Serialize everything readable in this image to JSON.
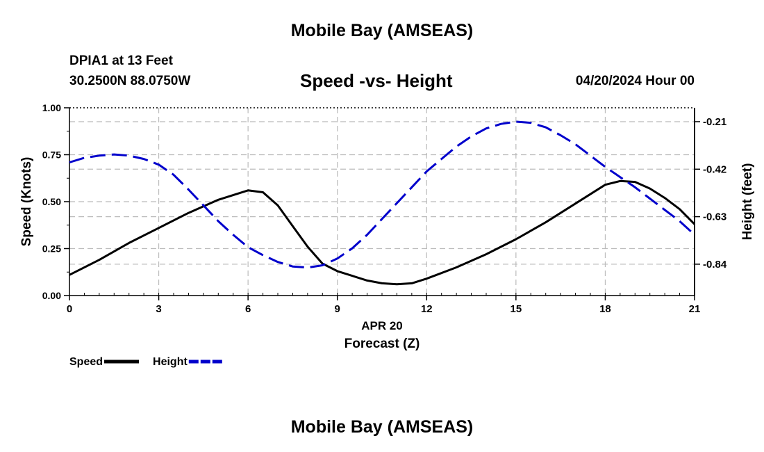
{
  "header": {
    "title": "Mobile Bay (AMSEAS)",
    "station": "DPIA1 at 13 Feet",
    "location": "30.2500N  88.0750W",
    "chart_title": "Speed -vs- Height",
    "run_date": "04/20/2024 Hour 00",
    "bottom_title": "Mobile Bay (AMSEAS)"
  },
  "chart_data": {
    "type": "line",
    "title": "Speed -vs- Height",
    "xlabel": "Forecast (Z)",
    "xlabel_date": "APR 20",
    "ylabel": "Speed (Knots)",
    "y2label": "Height (feet)",
    "xlim": [
      0,
      21
    ],
    "ylim": [
      0,
      1
    ],
    "y2lim": [
      -0.9786,
      -0.1486
    ],
    "x_ticks": [
      0,
      3,
      6,
      9,
      12,
      15,
      18,
      21
    ],
    "x_tick_labels": [
      "0",
      "3",
      "6",
      "9",
      "12",
      "15",
      "18",
      "21"
    ],
    "y_ticks": [
      0,
      0.25,
      0.5,
      0.75,
      1
    ],
    "y_tick_labels": [
      "0.00",
      "0.25",
      "0.50",
      "0.75",
      "1.00"
    ],
    "y2_ticks": [
      -0.84,
      -0.63,
      -0.42,
      -0.21
    ],
    "y2_tick_labels": [
      "-0.84",
      "-0.63",
      "-0.42",
      "-0.21"
    ],
    "grid": true,
    "legend_position": "bottom-left",
    "series": [
      {
        "name": "Speed",
        "axis": "left",
        "color": "#000000",
        "style": "solid",
        "x": [
          0,
          1,
          2,
          3,
          4,
          5,
          6,
          6.5,
          7,
          7.5,
          8,
          8.5,
          9,
          10,
          10.5,
          11,
          11.5,
          12,
          13,
          14,
          15,
          16,
          17,
          18,
          18.5,
          19,
          19.5,
          20,
          20.5,
          21
        ],
        "values": [
          0.11,
          0.19,
          0.28,
          0.36,
          0.44,
          0.51,
          0.56,
          0.55,
          0.48,
          0.37,
          0.26,
          0.17,
          0.13,
          0.08,
          0.065,
          0.06,
          0.065,
          0.09,
          0.15,
          0.22,
          0.3,
          0.39,
          0.49,
          0.59,
          0.61,
          0.605,
          0.57,
          0.52,
          0.46,
          0.38
        ]
      },
      {
        "name": "Height",
        "axis": "right",
        "color": "#0000CC",
        "style": "dashed",
        "x": [
          0,
          0.5,
          1,
          1.5,
          2,
          2.5,
          3,
          3.5,
          4,
          4.5,
          5,
          5.5,
          6,
          6.5,
          7,
          7.5,
          8,
          8.5,
          9,
          9.5,
          10,
          10.5,
          11,
          11.5,
          12,
          12.5,
          13,
          13.5,
          14,
          14.5,
          15,
          15.5,
          16,
          16.5,
          17,
          17.5,
          18,
          18.5,
          19,
          19.5,
          20,
          20.5,
          21
        ],
        "values": [
          -0.39,
          -0.37,
          -0.36,
          -0.355,
          -0.36,
          -0.375,
          -0.4,
          -0.445,
          -0.51,
          -0.58,
          -0.65,
          -0.71,
          -0.765,
          -0.8,
          -0.83,
          -0.85,
          -0.855,
          -0.845,
          -0.815,
          -0.77,
          -0.71,
          -0.64,
          -0.57,
          -0.5,
          -0.43,
          -0.375,
          -0.32,
          -0.275,
          -0.24,
          -0.22,
          -0.21,
          -0.215,
          -0.235,
          -0.27,
          -0.31,
          -0.36,
          -0.41,
          -0.455,
          -0.5,
          -0.55,
          -0.6,
          -0.65,
          -0.71
        ]
      }
    ]
  }
}
